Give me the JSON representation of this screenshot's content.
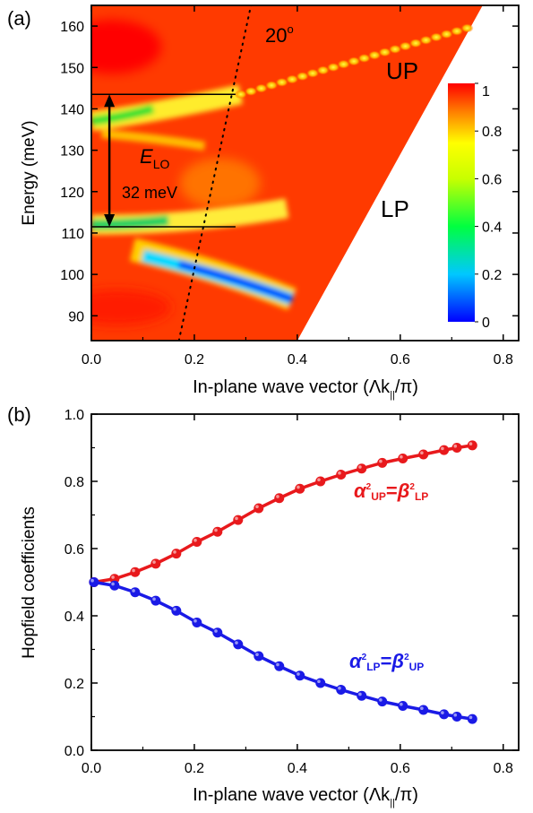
{
  "colors": {
    "up_curve": "#e8191c",
    "lp_curve": "#1a1ae6",
    "colormap": [
      "#0000ff",
      "#00c8ff",
      "#00ff40",
      "#c8ff00",
      "#ffff00",
      "#ff8000",
      "#ff0000"
    ]
  },
  "chart_data": [
    {
      "type": "heatmap",
      "panel_label": "(a)",
      "xlabel": "In-plane wave vector (Λk",
      "xlabel_sub": "||",
      "xlabel_end": "/π)",
      "ylabel": "Energy (meV)",
      "xlim": [
        0.0,
        0.83
      ],
      "ylim": [
        84,
        165
      ],
      "xticks": [
        "0.0",
        "0.2",
        "0.4",
        "0.6",
        "0.8"
      ],
      "yticks": [
        "90",
        "100",
        "110",
        "120",
        "130",
        "140",
        "150",
        "160"
      ],
      "colorbar": {
        "ticks": [
          "0",
          "0.2",
          "0.4",
          "0.6",
          "0.8",
          "1"
        ],
        "range": [
          0,
          1
        ]
      },
      "annotations": {
        "angle": "20",
        "angle_unit": "o",
        "up": "UP",
        "lp": "LP",
        "elo_main": "E",
        "elo_sub": "LO",
        "elo_value": "32 meV"
      },
      "energy_marks": {
        "upper": 143.5,
        "lower": 111.5,
        "x_end": 0.28
      },
      "white_region_boundary": [
        [
          0.4,
          84
        ],
        [
          0.76,
          165
        ]
      ],
      "dotted_20deg_line": [
        [
          0.17,
          84
        ],
        [
          0.31,
          165
        ]
      ],
      "up_branch": [
        [
          0.29,
          143.5
        ],
        [
          0.45,
          148.5
        ],
        [
          0.6,
          154
        ],
        [
          0.73,
          159.5
        ]
      ],
      "lp_branch": [
        [
          0.15,
          103
        ],
        [
          0.25,
          100
        ],
        [
          0.35,
          96.5
        ],
        [
          0.39,
          94
        ]
      ]
    },
    {
      "type": "line",
      "panel_label": "(b)",
      "xlabel": "In-plane wave vector (Λk",
      "xlabel_sub": "||",
      "xlabel_end": "/π)",
      "ylabel": "Hopfield coefficients",
      "xlim": [
        0.0,
        0.83
      ],
      "ylim": [
        0.0,
        1.0
      ],
      "xticks": [
        "0.0",
        "0.2",
        "0.4",
        "0.6",
        "0.8"
      ],
      "yticks": [
        "0.0",
        "0.2",
        "0.4",
        "0.6",
        "0.8",
        "1.0"
      ],
      "x": [
        0.005,
        0.045,
        0.085,
        0.125,
        0.165,
        0.205,
        0.245,
        0.285,
        0.325,
        0.365,
        0.405,
        0.445,
        0.485,
        0.525,
        0.565,
        0.605,
        0.645,
        0.685,
        0.71,
        0.74
      ],
      "series": [
        {
          "label_alpha": "α",
          "label_alpha_sub": "UP",
          "label_eq": "=",
          "label_beta": "β",
          "label_beta_sub": "LP",
          "values": [
            0.5,
            0.51,
            0.53,
            0.555,
            0.585,
            0.62,
            0.65,
            0.685,
            0.72,
            0.75,
            0.778,
            0.8,
            0.82,
            0.838,
            0.855,
            0.868,
            0.88,
            0.893,
            0.9,
            0.907
          ]
        },
        {
          "label_alpha": "α",
          "label_alpha_sub": "LP",
          "label_eq": "=",
          "label_beta": "β",
          "label_beta_sub": "UP",
          "values": [
            0.5,
            0.49,
            0.47,
            0.445,
            0.415,
            0.38,
            0.35,
            0.315,
            0.28,
            0.25,
            0.222,
            0.2,
            0.18,
            0.162,
            0.145,
            0.132,
            0.12,
            0.107,
            0.1,
            0.093
          ]
        }
      ]
    }
  ]
}
